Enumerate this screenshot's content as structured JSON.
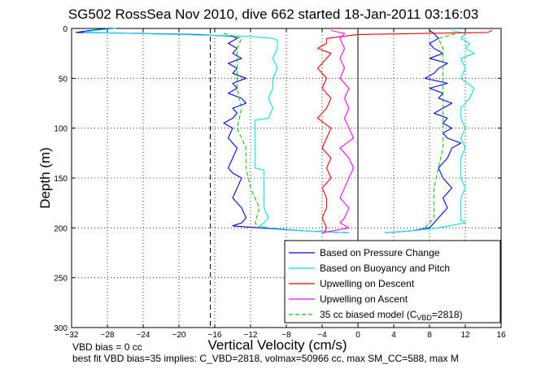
{
  "chart_data": {
    "type": "line",
    "title": "SG502 RossSea Nov 2010, dive 662 started 18-Jan-2011 03:16:03",
    "xlabel": "Vertical Velocity (cm/s)",
    "ylabel": "Depth (m)",
    "xlim": [
      -32,
      16
    ],
    "ylim": [
      300,
      0
    ],
    "y_reversed": true,
    "grid": true,
    "grid_style": "dotted",
    "x_ticks": [
      -32,
      -28,
      -24,
      -20,
      -16,
      -12,
      -8,
      -4,
      0,
      4,
      8,
      12,
      16
    ],
    "y_ticks": [
      0,
      50,
      100,
      150,
      200,
      250,
      300
    ],
    "vertical_lines": [
      {
        "x": 0,
        "style": "solid",
        "color": "#000000"
      },
      {
        "x": -16.5,
        "style": "dashed",
        "color": "#000000"
      }
    ],
    "legend_position": "bottom-right",
    "series": [
      {
        "name": "Based on Pressure Change",
        "color": "#0000ff",
        "style": "solid",
        "descent": {
          "depth": [
            0,
            2,
            4,
            5,
            6,
            8,
            10,
            15,
            20,
            25,
            30,
            35,
            40,
            45,
            50,
            55,
            60,
            65,
            70,
            75,
            80,
            85,
            90,
            95,
            100,
            110,
            120,
            130,
            140,
            145,
            150,
            160,
            170,
            180,
            190,
            195,
            198,
            200,
            203,
            205
          ],
          "velocity": [
            -28,
            -30,
            -31.5,
            -25,
            -18,
            -14,
            -13.5,
            -14.5,
            -13.5,
            -14,
            -13,
            -14.5,
            -13.5,
            -14,
            -12.5,
            -14,
            -13.5,
            -14.5,
            -13,
            -12.5,
            -14,
            -13.5,
            -14,
            -15,
            -14,
            -14.5,
            -13.5,
            -14,
            -14.5,
            -14,
            -13,
            -13.5,
            -14,
            -13,
            -12.5,
            -13,
            -14,
            -11,
            -6,
            -1
          ]
        },
        "ascent": {
          "depth": [
            205,
            203,
            200,
            195,
            190,
            185,
            180,
            170,
            160,
            150,
            140,
            130,
            120,
            115,
            110,
            105,
            100,
            95,
            90,
            85,
            80,
            75,
            70,
            65,
            60,
            55,
            50,
            45,
            40,
            35,
            30,
            25,
            20,
            15,
            10,
            5,
            2
          ],
          "velocity": [
            3,
            6,
            8,
            8.5,
            9,
            9.5,
            10,
            9.5,
            10.5,
            9.5,
            9,
            10,
            10.5,
            11.5,
            10,
            9.5,
            10.5,
            9.5,
            10,
            8.5,
            9.5,
            10.5,
            9,
            9.5,
            8,
            10,
            7.5,
            8.5,
            9,
            10,
            8,
            9.5,
            8.5,
            8,
            9,
            8.5,
            8
          ]
        }
      },
      {
        "name": "Based on Buoyancy and Pitch",
        "color": "#00e5e5",
        "style": "solid",
        "descent": {
          "depth": [
            0,
            2,
            4,
            6,
            8,
            10,
            12,
            20,
            30,
            40,
            50,
            60,
            70,
            80,
            90,
            92,
            100,
            110,
            120,
            130,
            140,
            142,
            150,
            160,
            170,
            180,
            190,
            195,
            198,
            200,
            203,
            205
          ],
          "velocity": [
            -27,
            -29.5,
            -30.5,
            -20,
            -12,
            -9.5,
            -9,
            -9,
            -9.5,
            -9,
            -9.5,
            -9.5,
            -10,
            -9.5,
            -10,
            -11.5,
            -11.5,
            -11.5,
            -11.5,
            -11.5,
            -11.5,
            -10.5,
            -10.5,
            -10.5,
            -10.5,
            -10.5,
            -10,
            -10.5,
            -11,
            -10,
            -6,
            -1
          ]
        },
        "ascent": {
          "depth": [
            205,
            203,
            200,
            195,
            192,
            190,
            180,
            170,
            160,
            150,
            140,
            130,
            120,
            110,
            100,
            90,
            80,
            70,
            60,
            50,
            40,
            30,
            25,
            20,
            15,
            10,
            5,
            2
          ],
          "velocity": [
            3,
            6,
            9,
            12,
            11.5,
            11.5,
            11.5,
            11.5,
            12,
            11.5,
            11.5,
            11.5,
            12,
            11.5,
            12,
            11.5,
            11.5,
            12.5,
            13,
            11.5,
            12,
            11.5,
            13,
            12,
            12.5,
            11.5,
            12,
            10.5
          ]
        }
      },
      {
        "name": "Upwelling on Descent",
        "color": "#ff0000",
        "style": "solid",
        "descent": {
          "depth": [
            2,
            4,
            6,
            10,
            15,
            20,
            25,
            30,
            40,
            50,
            60,
            70,
            80,
            90,
            100,
            110,
            120,
            130,
            140,
            150,
            160,
            170,
            180,
            190,
            200,
            205
          ],
          "velocity": [
            15,
            14.5,
            0,
            -3.5,
            -3.5,
            -4.5,
            -3,
            -3.5,
            -4.5,
            -3.5,
            -4,
            -3,
            -3.5,
            -4.5,
            -3,
            -3.5,
            -4,
            -3,
            -3.5,
            -3,
            -4,
            -3.5,
            -3.5,
            -4,
            -3.5,
            -3.8
          ]
        }
      },
      {
        "name": "Upwelling on Ascent",
        "color": "#ff00ff",
        "style": "solid",
        "ascent": {
          "depth": [
            205,
            200,
            195,
            190,
            180,
            170,
            160,
            150,
            140,
            130,
            120,
            110,
            100,
            90,
            80,
            70,
            60,
            50,
            40,
            30,
            20,
            10,
            5,
            2
          ],
          "velocity": [
            -4,
            -1,
            -2,
            -1.5,
            -1,
            -2,
            -1.5,
            -1,
            -0.5,
            -1,
            -2,
            -0.5,
            -1,
            -1.5,
            -1,
            -1.5,
            -1,
            -2,
            -1.5,
            -2,
            -1.5,
            -2,
            -1.5,
            -3
          ]
        }
      },
      {
        "name": "35 cc biased model (CVBD=2818)",
        "color": "#00cc00",
        "style": "dashed",
        "descent": {
          "depth": [
            5,
            10,
            20,
            40,
            60,
            80,
            100,
            120,
            140,
            160,
            180,
            195,
            200
          ],
          "velocity": [
            -15,
            -13,
            -13.5,
            -13.5,
            -13.5,
            -13,
            -13.5,
            -12.5,
            -12.5,
            -12,
            -11,
            -11.5,
            -11
          ]
        },
        "ascent": {
          "depth": [
            200,
            190,
            180,
            160,
            140,
            120,
            100,
            80,
            60,
            40,
            20,
            10,
            5
          ],
          "velocity": [
            7.5,
            8.5,
            8.5,
            8.5,
            9,
            9.5,
            9.5,
            9.5,
            9.5,
            9.5,
            9.5,
            9,
            11
          ]
        }
      }
    ],
    "annotations": [
      "VBD bias = 0 cc",
      "best fit VBD bias=35 implies: C_VBD=2818, volmax=50966 cc, max SM_CC=588, max M"
    ]
  }
}
